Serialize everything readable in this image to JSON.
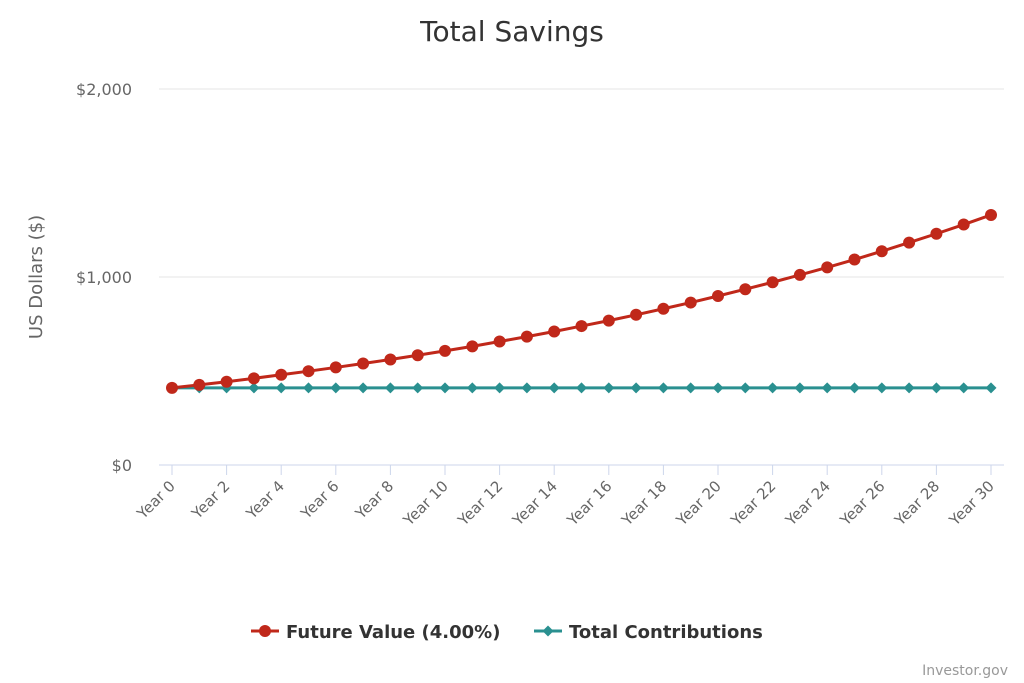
{
  "chart_data": {
    "type": "line",
    "title": "Total Savings",
    "ylabel": "US Dollars ($)",
    "xlabel": "",
    "ylim": [
      0,
      2000
    ],
    "y_ticks": [
      0,
      1000,
      2000
    ],
    "y_tick_labels": [
      "$0",
      "$1,000",
      "$2,000"
    ],
    "grid": true,
    "legend_position": "bottom",
    "x": [
      0,
      1,
      2,
      3,
      4,
      5,
      6,
      7,
      8,
      9,
      10,
      11,
      12,
      13,
      14,
      15,
      16,
      17,
      18,
      19,
      20,
      21,
      22,
      23,
      24,
      25,
      26,
      27,
      28,
      29,
      30
    ],
    "x_ticks": [
      0,
      2,
      4,
      6,
      8,
      10,
      12,
      14,
      16,
      18,
      20,
      22,
      24,
      26,
      28,
      30
    ],
    "x_tick_labels": [
      "Year 0",
      "Year 2",
      "Year 4",
      "Year 6",
      "Year 8",
      "Year 10",
      "Year 12",
      "Year 14",
      "Year 16",
      "Year 18",
      "Year 20",
      "Year 22",
      "Year 24",
      "Year 26",
      "Year 28",
      "Year 30"
    ],
    "series": [
      {
        "name": "Future Value (4.00%)",
        "color": "#c0281a",
        "marker": "circle",
        "values": [
          410,
          426,
          443,
          461,
          480,
          499,
          519,
          540,
          561,
          584,
          607,
          631,
          657,
          683,
          710,
          739,
          768,
          799,
          831,
          864,
          899,
          935,
          972,
          1011,
          1051,
          1093,
          1137,
          1183,
          1230,
          1279,
          1330
        ]
      },
      {
        "name": "Total Contributions",
        "color": "#2a9090",
        "marker": "diamond",
        "values": [
          410,
          410,
          410,
          410,
          410,
          410,
          410,
          410,
          410,
          410,
          410,
          410,
          410,
          410,
          410,
          410,
          410,
          410,
          410,
          410,
          410,
          410,
          410,
          410,
          410,
          410,
          410,
          410,
          410,
          410,
          410
        ]
      }
    ]
  },
  "credits": "Investor.gov"
}
